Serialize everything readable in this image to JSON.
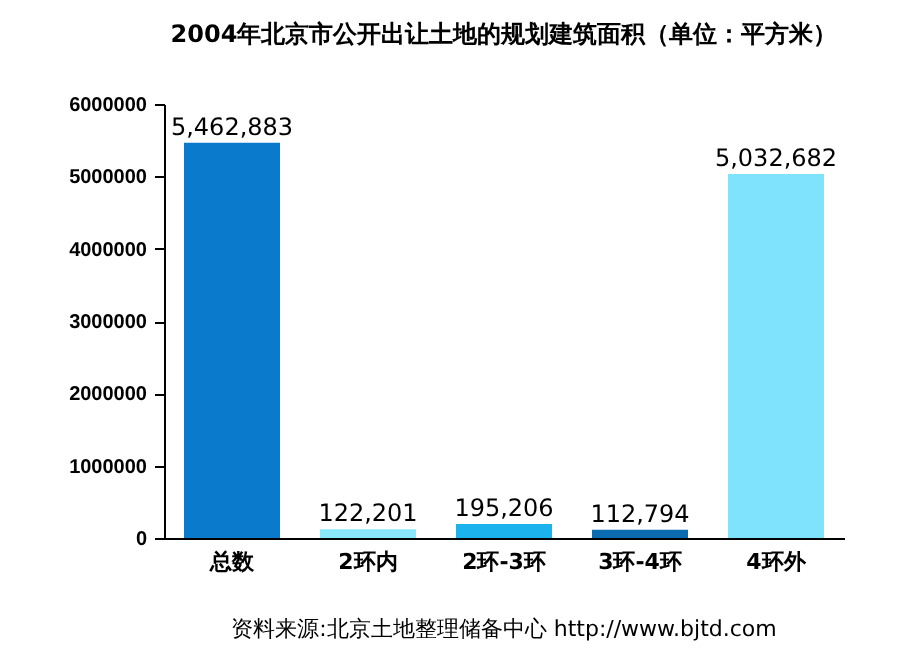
{
  "chart_data": {
    "type": "bar",
    "title": "2004年北京市公开出让土地的规划建筑面积（单位：平方米）",
    "categories": [
      "总数",
      "2环内",
      "2环-3环",
      "3环-4环",
      "4环外"
    ],
    "values": [
      5462883,
      122201,
      195206,
      112794,
      5032682
    ],
    "colors": [
      "#0a7acc",
      "#8ae8fc",
      "#1cb2ee",
      "#0c6cb2",
      "#80e3fe"
    ],
    "value_labels": [
      "5,462,883",
      "122,201",
      "195,206",
      "112,794",
      "5,032,682"
    ],
    "ylim": [
      0,
      6000000
    ],
    "yticks": [
      0,
      1000000,
      2000000,
      3000000,
      4000000,
      5000000,
      6000000
    ],
    "grid": false,
    "annotations": [
      "资料来源:北京土地整理储备中心  http://www.bjtd.com"
    ]
  }
}
